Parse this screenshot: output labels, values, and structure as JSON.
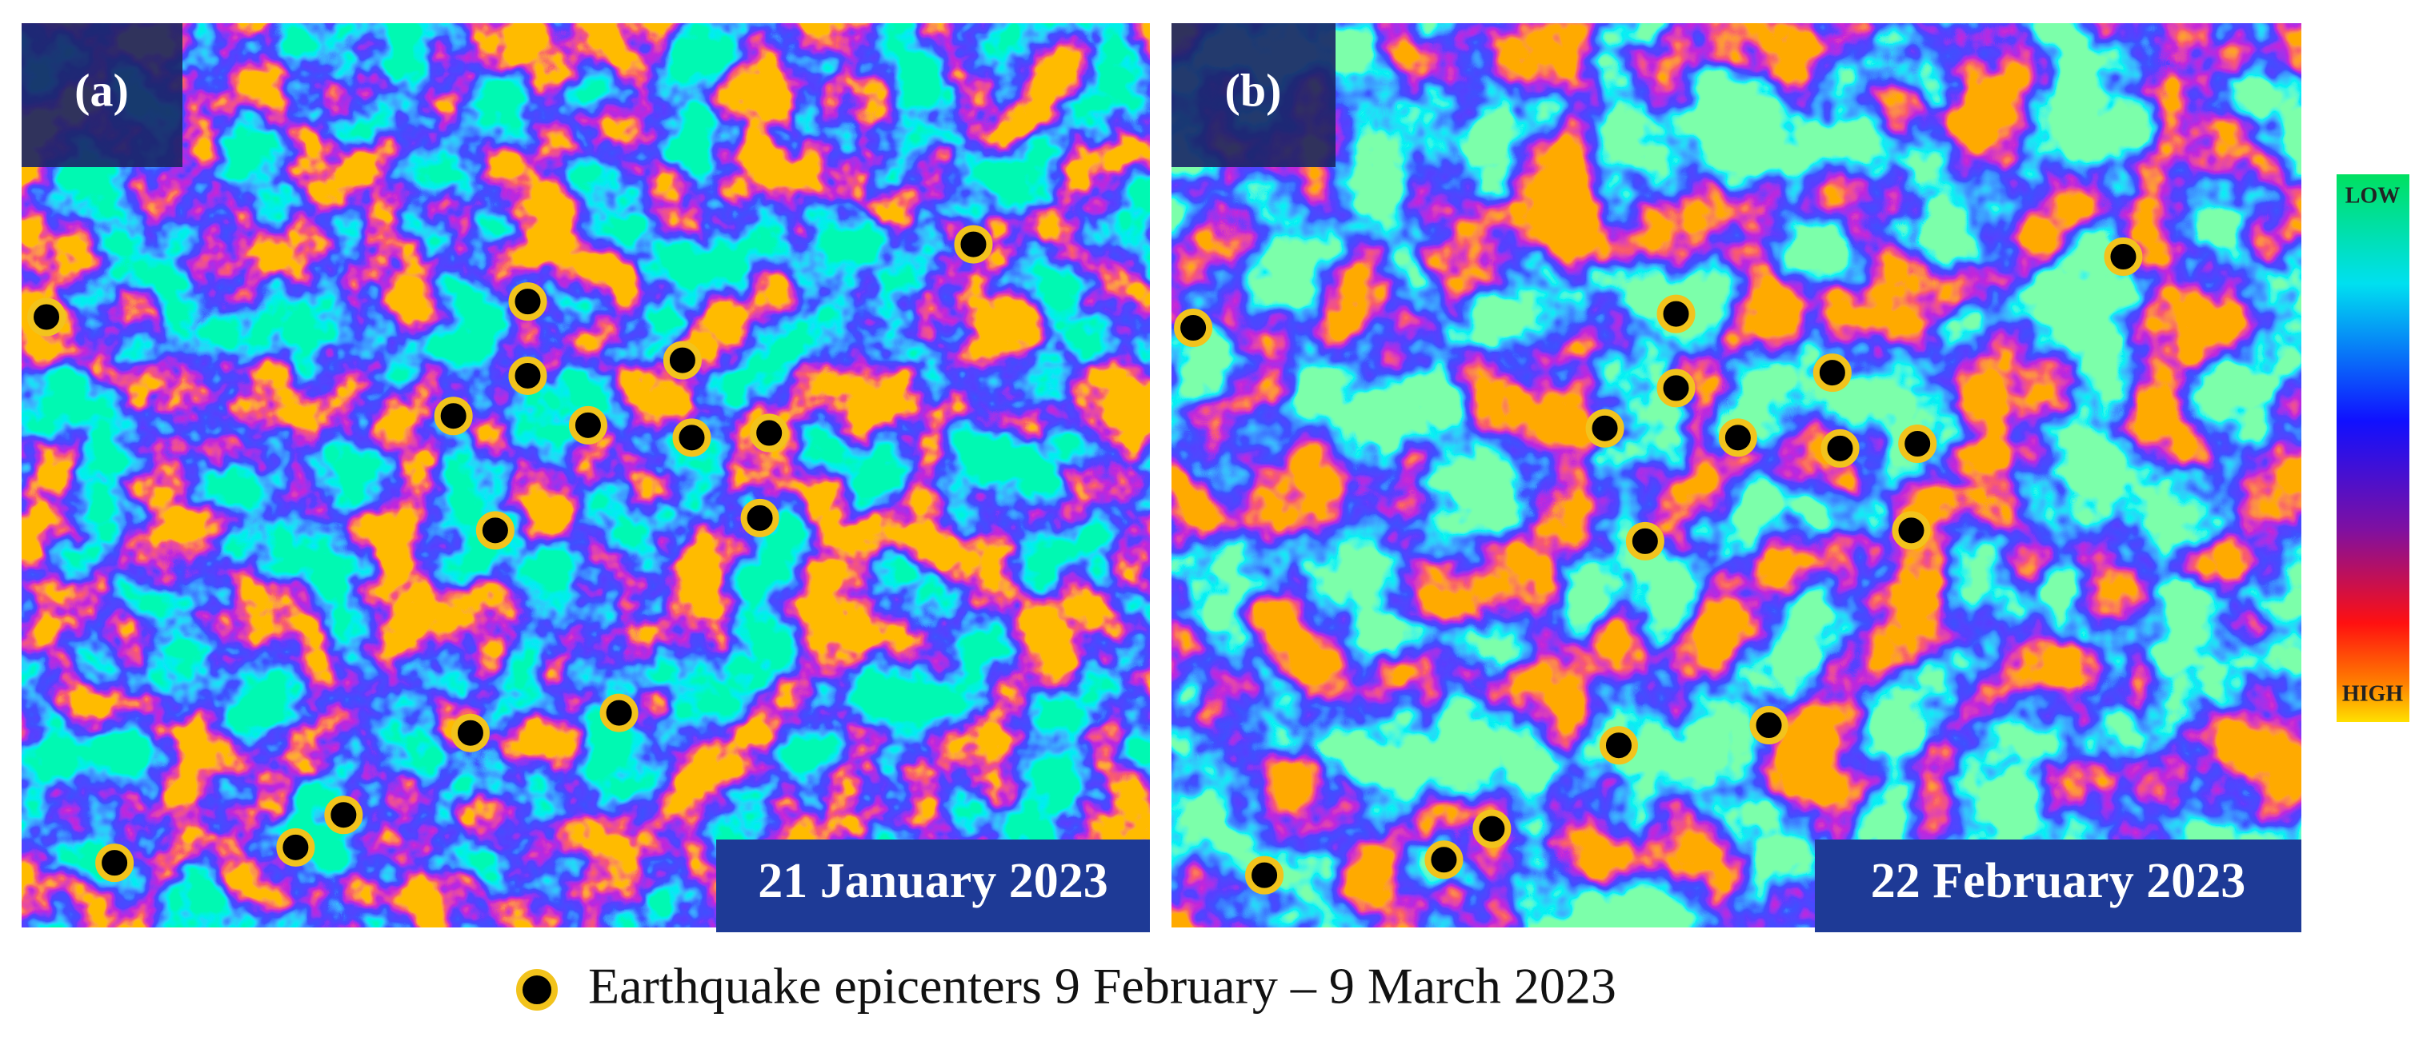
{
  "panels": [
    {
      "label": "(a)",
      "date": "21 January 2023"
    },
    {
      "label": "(b)",
      "date": "22 February 2023"
    }
  ],
  "scale": {
    "low": "LOW",
    "high": "HIGH"
  },
  "legend": "Earthquake epicenters 9 February – 9 March 2023"
}
